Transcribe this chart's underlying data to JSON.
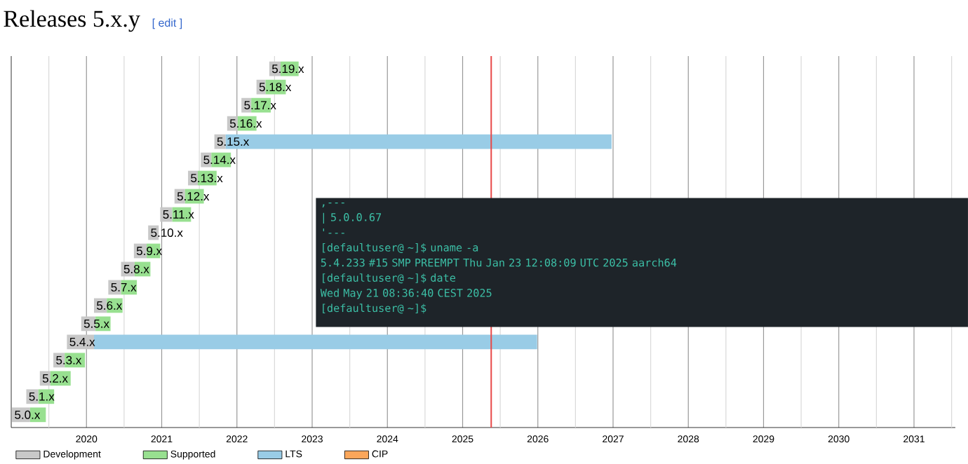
{
  "chart_data": {
    "type": "bar",
    "orientation": "horizontal",
    "title": "Releases 5.x.y",
    "annotations": [
      "[ edit ]",
      ",---",
      "| 5.0.0.67",
      "'---",
      "[defaultuser@ ~]$ uname -a",
      "5.4.233 #15 SMP PREEMPT Thu Jan 23 12:08:09 UTC 2025 aarch64",
      "[defaultuser@ ~]$ date",
      "Wed May 21 08:36:40 CEST 2025",
      "[defaultuser@ ~]$"
    ],
    "categories": [
      "5.19.x",
      "5.18.x",
      "5.17.x",
      "5.16.x",
      "5.15.x",
      "5.14.x",
      "5.13.x",
      "5.12.x",
      "5.11.x",
      "5.10.x",
      "5.9.x",
      "5.8.x",
      "5.7.x",
      "5.6.x",
      "5.5.x",
      "5.4.x",
      "5.3.x",
      "5.2.x",
      "5.1.x",
      "5.0.x"
    ],
    "series": [
      {
        "name": "Development",
        "color": "#c8c8c8",
        "base": [
          2022.43,
          2022.26,
          2022.06,
          2021.87,
          2021.7,
          2021.52,
          2021.35,
          2021.17,
          2020.98,
          2020.82,
          2020.63,
          2020.46,
          2020.29,
          2020.1,
          2019.93,
          2019.74,
          2019.56,
          2019.38,
          2019.2,
          2019.01
        ],
        "values": [
          0.15,
          0.12,
          0.13,
          0.14,
          0.15,
          0.14,
          0.13,
          0.14,
          0.16,
          0.14,
          0.17,
          0.18,
          0.17,
          0.17,
          0.19,
          0.36,
          0.15,
          0.14,
          0.16,
          0.24
        ]
      },
      {
        "name": "Supported",
        "color": "#98e090",
        "base": [
          2022.58,
          2022.38,
          2022.19,
          2022.01,
          null,
          2021.66,
          2021.48,
          2021.31,
          2021.14,
          null,
          2020.8,
          2020.64,
          2020.46,
          2020.27,
          2020.12,
          null,
          2019.71,
          2019.52,
          2019.36,
          2019.25
        ],
        "values": [
          0.24,
          0.27,
          0.26,
          0.25,
          null,
          0.26,
          0.25,
          0.25,
          0.25,
          null,
          0.18,
          0.21,
          0.21,
          0.21,
          0.2,
          null,
          0.27,
          0.27,
          0.21,
          0.21
        ]
      },
      {
        "name": "LTS",
        "color": "#99cce6",
        "base": [
          null,
          null,
          null,
          null,
          2021.85,
          null,
          null,
          null,
          null,
          null,
          null,
          null,
          null,
          null,
          null,
          2020.1,
          null,
          null,
          null,
          null
        ],
        "values": [
          null,
          null,
          null,
          null,
          5.13,
          null,
          null,
          null,
          null,
          null,
          null,
          null,
          null,
          null,
          null,
          5.89,
          null,
          null,
          null,
          null
        ]
      },
      {
        "name": "CIP",
        "color": "#fba65a",
        "values": [
          null,
          null,
          null,
          null,
          null,
          null,
          null,
          null,
          null,
          null,
          null,
          null,
          null,
          null,
          null,
          null,
          null,
          null,
          null,
          null
        ]
      }
    ],
    "xlim": [
      2019,
      2031.55
    ],
    "xticks": [
      {
        "value": 2019.5,
        "label": null
      },
      2020,
      {
        "value": 2020.5,
        "label": null
      },
      2021,
      {
        "value": 2021.5,
        "label": null
      },
      2022,
      {
        "value": 2022.5,
        "label": null
      },
      2023,
      {
        "value": 2023.5,
        "label": null
      },
      2024,
      {
        "value": 2024.5,
        "label": null
      },
      2025,
      {
        "value": 2025.5,
        "label": null
      },
      2026,
      {
        "value": 2026.5,
        "label": null
      },
      2027,
      {
        "value": 2027.5,
        "label": null
      },
      2028,
      {
        "value": 2028.5,
        "label": null
      },
      2029,
      {
        "value": 2029.5,
        "label": null
      },
      2030,
      {
        "value": 2030.5,
        "label": null
      },
      2031,
      {
        "value": 2031.5,
        "label": null
      }
    ],
    "grid": "x",
    "legend": "bottom",
    "ref_lines": [
      {
        "axis": "x",
        "value": 2025.38,
        "color": "#e84848"
      }
    ]
  }
}
